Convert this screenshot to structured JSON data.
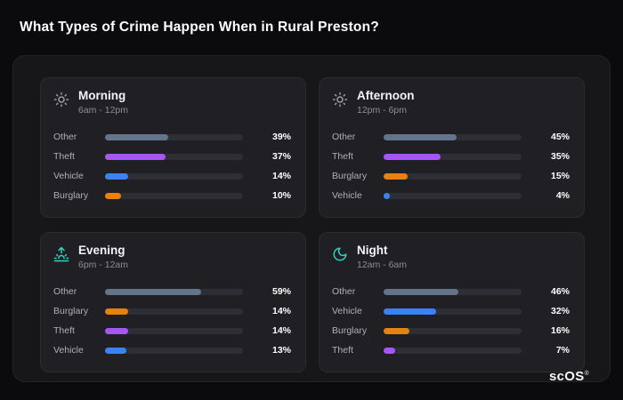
{
  "page": {
    "title": "What Types of Crime Happen When in Rural Preston?",
    "brand": "scOS",
    "brand_mark": "®"
  },
  "colors": {
    "other": "#64748b",
    "theft": "#a855f7",
    "vehicle": "#3b82f6",
    "burglary": "#e8820e",
    "accent_teal": "#2dd4bf",
    "icon_gray": "#9aa0a8"
  },
  "chart_data": [
    {
      "type": "bar",
      "title": "Morning",
      "subtitle": "6am - 12pm",
      "icon": "sun-icon",
      "unit": "%",
      "categories": [
        "Other",
        "Theft",
        "Vehicle",
        "Burglary"
      ],
      "values": [
        39,
        37,
        14,
        10
      ],
      "bar_colors": [
        "#64748b",
        "#a855f7",
        "#3b82f6",
        "#e8820e"
      ]
    },
    {
      "type": "bar",
      "title": "Afternoon",
      "subtitle": "12pm - 6pm",
      "icon": "sun-icon",
      "unit": "%",
      "categories": [
        "Other",
        "Theft",
        "Burglary",
        "Vehicle"
      ],
      "values": [
        45,
        35,
        15,
        4
      ],
      "bar_colors": [
        "#64748b",
        "#a855f7",
        "#e8820e",
        "#3b82f6"
      ]
    },
    {
      "type": "bar",
      "title": "Evening",
      "subtitle": "6pm - 12am",
      "icon": "sunset-icon",
      "unit": "%",
      "categories": [
        "Other",
        "Burglary",
        "Theft",
        "Vehicle"
      ],
      "values": [
        59,
        14,
        14,
        13
      ],
      "bar_colors": [
        "#64748b",
        "#e8820e",
        "#a855f7",
        "#3b82f6"
      ]
    },
    {
      "type": "bar",
      "title": "Night",
      "subtitle": "12am - 6am",
      "icon": "moon-icon",
      "unit": "%",
      "categories": [
        "Other",
        "Vehicle",
        "Burglary",
        "Theft"
      ],
      "values": [
        46,
        32,
        16,
        7
      ],
      "bar_colors": [
        "#64748b",
        "#3b82f6",
        "#e8820e",
        "#a855f7"
      ]
    }
  ]
}
